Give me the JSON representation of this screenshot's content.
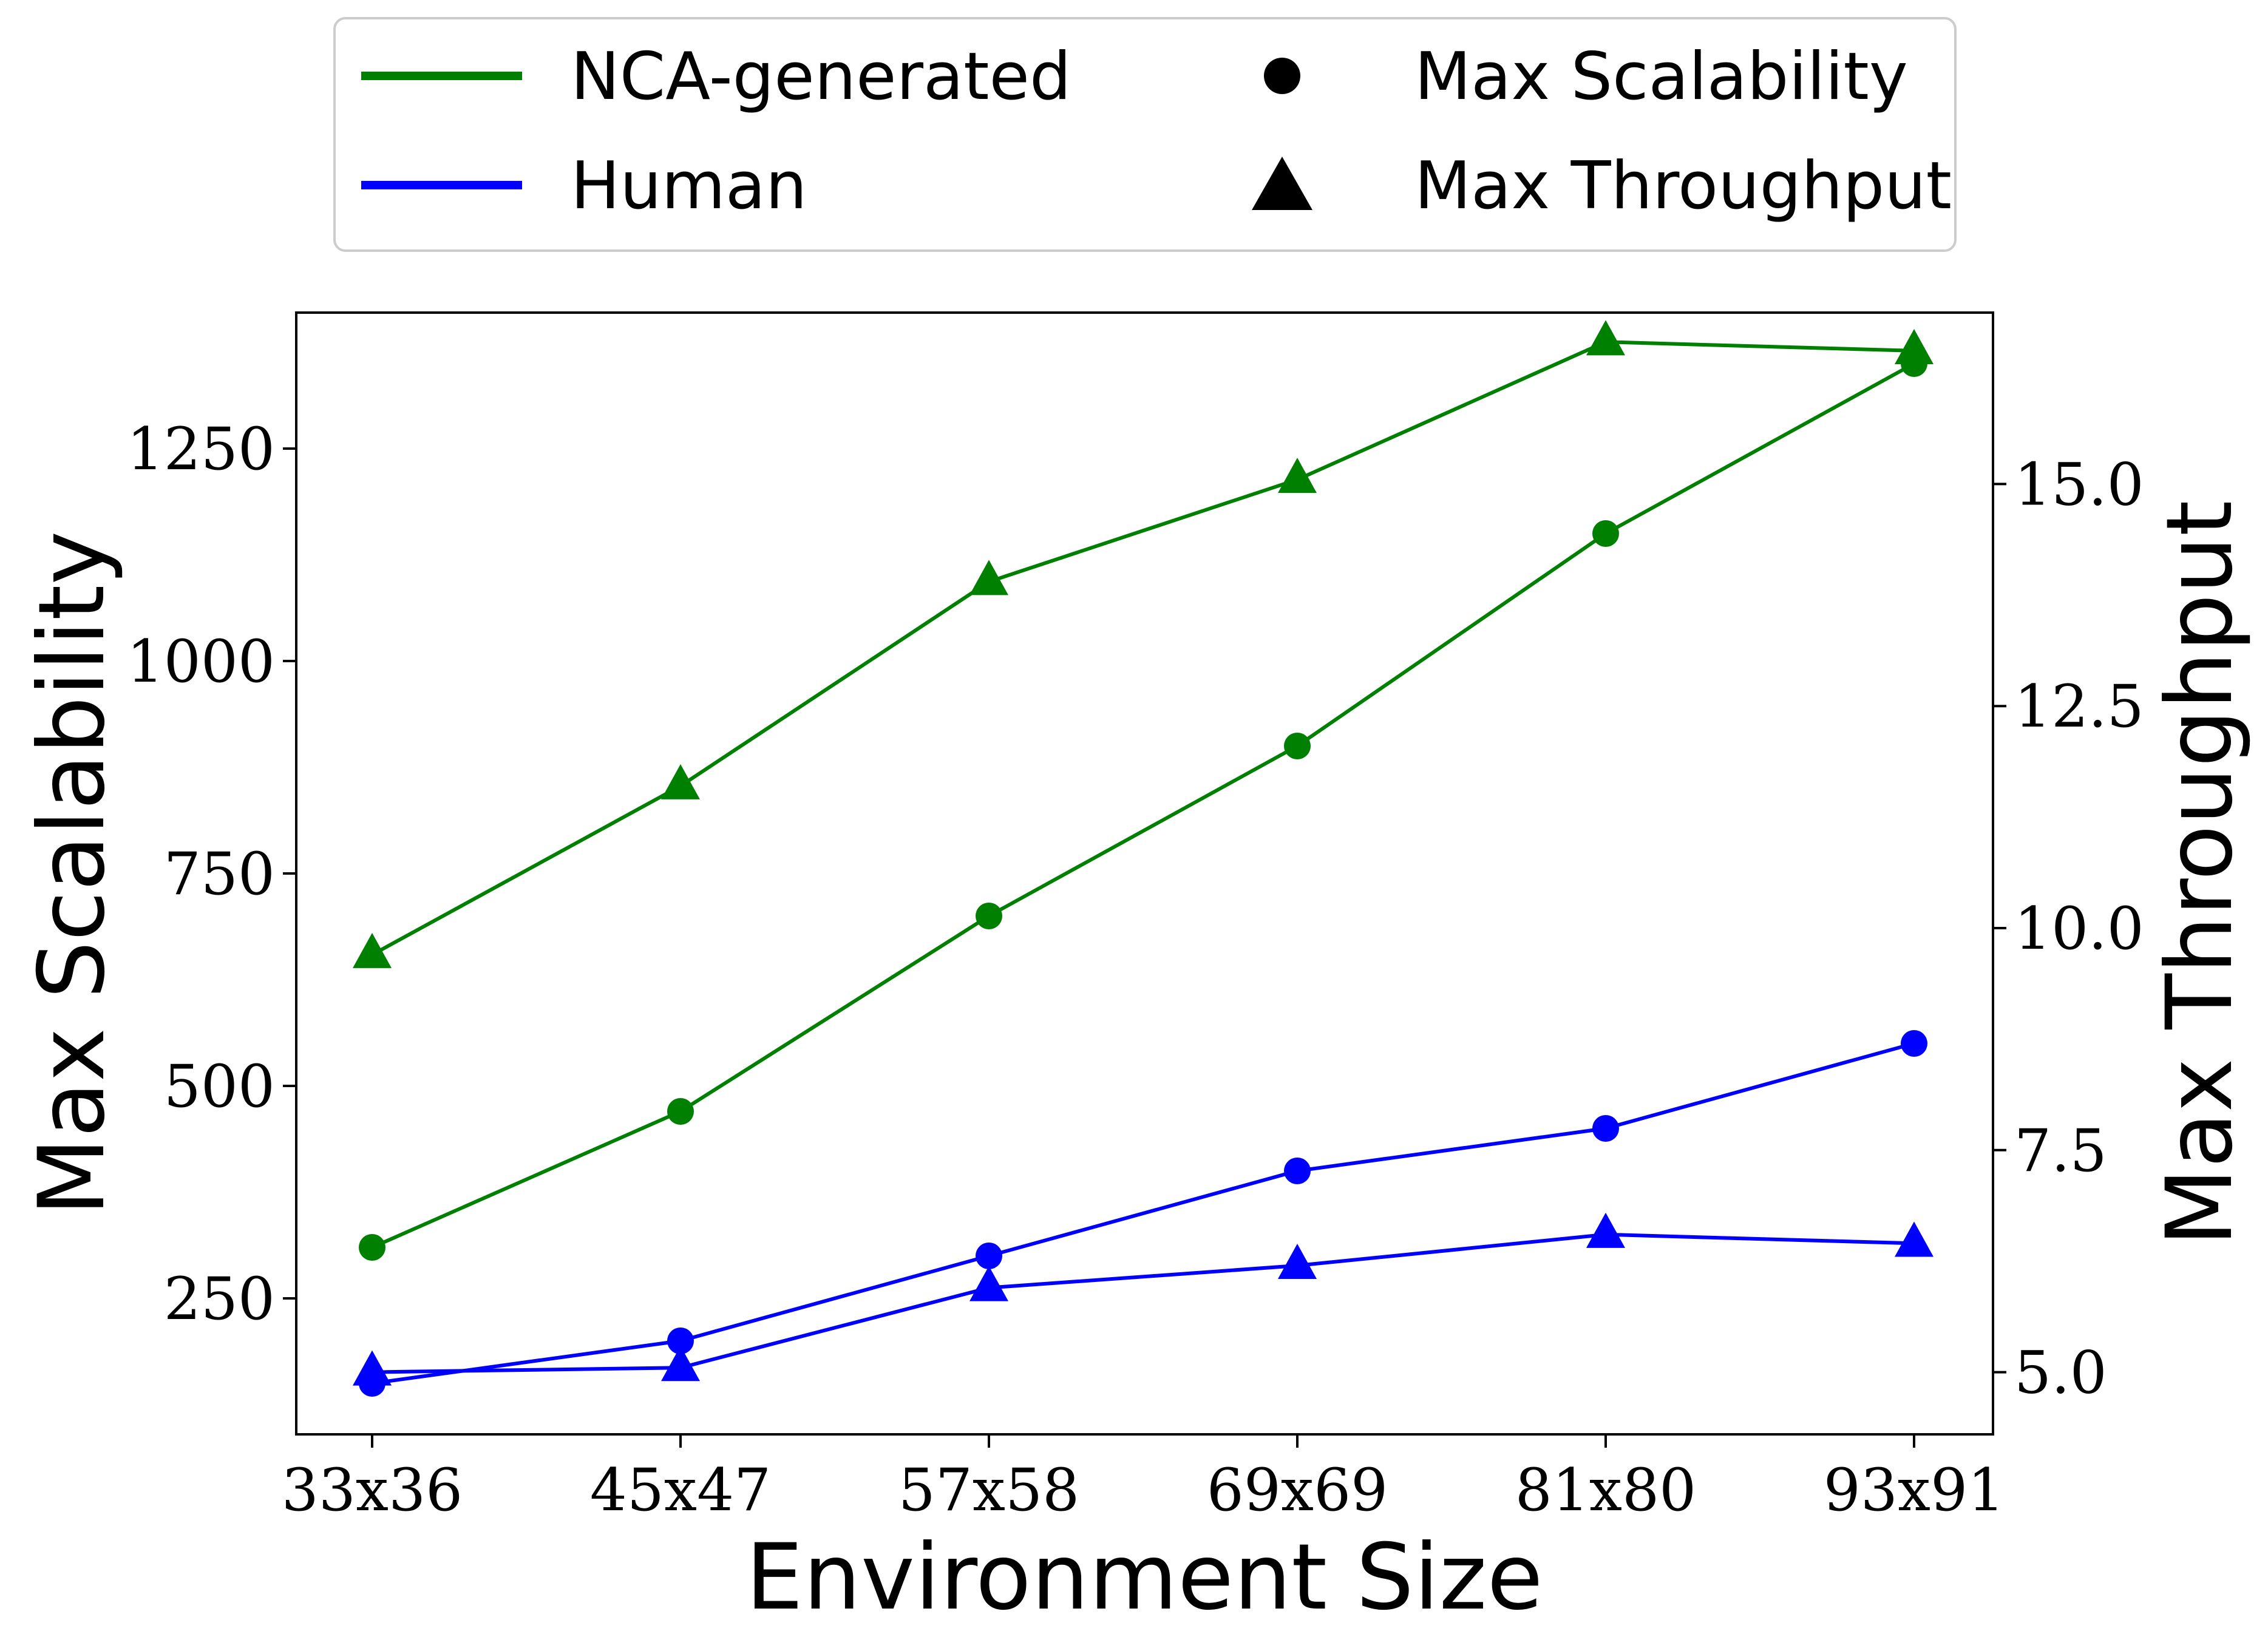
{
  "chart_data": {
    "type": "line",
    "xlabel": "Environment Size",
    "ylabel_left": "Max Scalability",
    "ylabel_right": "Max Throughput",
    "categories": [
      "33x36",
      "45x47",
      "57x58",
      "69x69",
      "81x80",
      "93x91"
    ],
    "left_axis": {
      "ylim": [
        90,
        1410
      ],
      "ticks": [
        250,
        500,
        750,
        1000,
        1250
      ],
      "tick_labels": [
        "250",
        "500",
        "750",
        "1000",
        "1250"
      ]
    },
    "right_axis": {
      "ylim": [
        4.3,
        16.93
      ],
      "ticks": [
        5.0,
        7.5,
        10.0,
        12.5,
        15.0
      ],
      "tick_labels": [
        "5.0",
        "7.5",
        "10.0",
        "12.5",
        "15.0"
      ]
    },
    "grid": false,
    "legend_position": "top-outside",
    "series": [
      {
        "name": "NCA-generated",
        "metric": "Max Scalability",
        "axis": "left",
        "marker": "circle",
        "color": "#008000",
        "values": [
          310,
          470,
          700,
          900,
          1150,
          1350
        ]
      },
      {
        "name": "NCA-generated",
        "metric": "Max Throughput",
        "axis": "right",
        "marker": "triangle",
        "color": "#008000",
        "values": [
          9.7,
          11.6,
          13.9,
          15.05,
          16.6,
          16.5
        ]
      },
      {
        "name": "Human",
        "metric": "Max Scalability",
        "axis": "left",
        "marker": "circle",
        "color": "#0000ff",
        "values": [
          150,
          200,
          300,
          400,
          450,
          550
        ]
      },
      {
        "name": "Human",
        "metric": "Max Throughput",
        "axis": "right",
        "marker": "triangle",
        "color": "#0000ff",
        "values": [
          5.0,
          5.05,
          5.95,
          6.2,
          6.55,
          6.45
        ]
      }
    ],
    "legend": {
      "entries": [
        {
          "label": "NCA-generated",
          "kind": "line",
          "color": "#008000"
        },
        {
          "label": "Max Scalability",
          "kind": "circle",
          "color": "#000000"
        },
        {
          "label": "Human",
          "kind": "line",
          "color": "#0000ff"
        },
        {
          "label": "Max Throughput",
          "kind": "triangle",
          "color": "#000000"
        }
      ]
    }
  }
}
